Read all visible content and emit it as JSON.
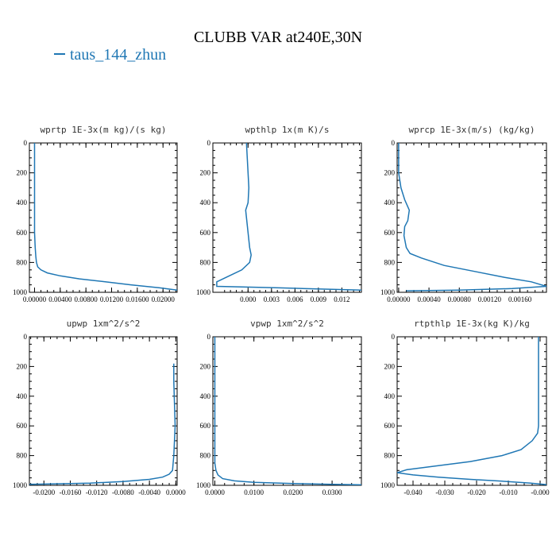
{
  "page": {
    "title": "CLUBB VAR at240E,30N",
    "legend": "taus_144_zhun",
    "series_color": "#1f77b4"
  },
  "chart_data": [
    {
      "type": "line",
      "title": "wprtp  1E-3x(m kg)/(s kg)",
      "ylim": [
        1000,
        0
      ],
      "yticks": [
        0,
        200,
        400,
        600,
        800,
        1000
      ],
      "xlim": [
        -0.0008,
        0.0222
      ],
      "xticks": [
        0.0,
        0.004,
        0.008,
        0.012,
        0.016,
        0.02
      ],
      "xtick_labels": [
        "0.00000",
        "0.00400",
        "0.00800",
        "0.01200",
        "0.01600",
        "0.02000"
      ],
      "series": [
        {
          "x": [
            0.0,
            0.0,
            0.0,
            0.0001,
            0.0002,
            0.0003,
            0.0005,
            0.001,
            0.002,
            0.004,
            0.007,
            0.011,
            0.015,
            0.0195,
            0.0222
          ],
          "y": [
            0,
            400,
            600,
            700,
            760,
            800,
            830,
            850,
            870,
            890,
            910,
            930,
            950,
            970,
            985
          ]
        }
      ]
    },
    {
      "type": "line",
      "title": "wpthlp  1x(m K)/s",
      "ylim": [
        1000,
        0
      ],
      "yticks": [
        0,
        200,
        400,
        600,
        800,
        1000
      ],
      "xlim": [
        -0.0045,
        0.0145
      ],
      "xticks": [
        0.0,
        0.003,
        0.006,
        0.009,
        0.012
      ],
      "xtick_labels": [
        "0.000",
        "0.003",
        "0.006",
        "0.009",
        "0.012"
      ],
      "series": [
        {
          "x": [
            -0.0002,
            -0.0001,
            0.0,
            0.0001,
            0.0,
            -0.0003,
            -0.0002,
            0.0,
            0.0002,
            0.0004,
            0.0002,
            -0.0008,
            -0.0028,
            -0.004,
            -0.004,
            0.004,
            0.0145
          ],
          "y": [
            0,
            100,
            200,
            300,
            400,
            450,
            500,
            600,
            700,
            750,
            800,
            850,
            900,
            930,
            960,
            970,
            985
          ]
        }
      ]
    },
    {
      "type": "line",
      "title": "wprcp  1E-3x(m/s) (kg/kg)",
      "ylim": [
        1000,
        0
      ],
      "yticks": [
        0,
        200,
        400,
        600,
        800,
        1000
      ],
      "xlim": [
        -2e-05,
        0.00195
      ],
      "xticks": [
        0.0,
        0.0004,
        0.0008,
        0.0012,
        0.0016
      ],
      "xtick_labels": [
        "0.00000",
        "0.00040",
        "0.00080",
        "0.00120",
        "0.00160"
      ],
      "series": [
        {
          "x": [
            0.0,
            0.0,
            3e-05,
            8e-05,
            0.00014,
            0.00012,
            8e-05,
            7e-05,
            0.0001,
            0.00015,
            0.0003,
            0.0006,
            0.001,
            0.0014,
            0.00175,
            0.00195,
            0.0015,
            0.0008,
            0.0001
          ],
          "y": [
            0,
            200,
            300,
            380,
            450,
            520,
            560,
            620,
            700,
            740,
            770,
            820,
            860,
            900,
            930,
            960,
            975,
            985,
            990
          ]
        }
      ]
    },
    {
      "type": "line",
      "title": "upwp  1xm^2/s^2",
      "ylim": [
        1000,
        0
      ],
      "yticks": [
        0,
        200,
        400,
        600,
        800,
        1000
      ],
      "xlim": [
        -0.0222,
        0.0002
      ],
      "xticks": [
        -0.02,
        -0.016,
        -0.012,
        -0.008,
        -0.004,
        0.0
      ],
      "xtick_labels": [
        "-0.0200",
        "-0.0160",
        "-0.0120",
        "-0.0080",
        "-0.0040",
        "0.0000"
      ],
      "series": [
        {
          "x": [
            -0.0003,
            -0.0003,
            -0.0001,
            -0.0003,
            -0.0005,
            -0.001,
            -0.002,
            -0.004,
            -0.008,
            -0.013,
            -0.018,
            -0.0222
          ],
          "y": [
            180,
            300,
            600,
            800,
            900,
            925,
            945,
            960,
            975,
            985,
            990,
            993
          ]
        }
      ]
    },
    {
      "type": "line",
      "title": "vpwp  1xm^2/s^2",
      "ylim": [
        1000,
        0
      ],
      "yticks": [
        0,
        200,
        400,
        600,
        800,
        1000
      ],
      "xlim": [
        -0.0005,
        0.0375
      ],
      "xticks": [
        0.0,
        0.01,
        0.02,
        0.03
      ],
      "xtick_labels": [
        "0.0000",
        "0.0100",
        "0.0200",
        "0.0300"
      ],
      "series": [
        {
          "x": [
            0.0,
            0.0,
            0.0,
            0.0003,
            0.0008,
            0.002,
            0.005,
            0.01,
            0.02,
            0.03,
            0.0375
          ],
          "y": [
            0,
            500,
            850,
            900,
            930,
            955,
            970,
            980,
            988,
            993,
            997
          ]
        }
      ]
    },
    {
      "type": "line",
      "title": "rtpthlp  1E-3x(kg K)/kg",
      "ylim": [
        1000,
        0
      ],
      "yticks": [
        0,
        200,
        400,
        600,
        800,
        1000
      ],
      "xlim": [
        -0.045,
        0.002
      ],
      "xticks": [
        -0.04,
        -0.03,
        -0.02,
        -0.01,
        0.0
      ],
      "xtick_labels": [
        "-0.040",
        "-0.030",
        "-0.020",
        "-0.010",
        "-0.000"
      ],
      "series": [
        {
          "x": [
            -0.0005,
            -0.0005,
            -0.0005,
            -0.0008,
            -0.0025,
            -0.006,
            -0.012,
            -0.022,
            -0.033,
            -0.042,
            -0.045,
            -0.04,
            -0.032,
            -0.022,
            -0.012,
            -0.003,
            0.002
          ],
          "y": [
            0,
            400,
            600,
            650,
            700,
            760,
            800,
            840,
            870,
            895,
            915,
            930,
            945,
            960,
            972,
            985,
            995
          ]
        }
      ]
    }
  ]
}
